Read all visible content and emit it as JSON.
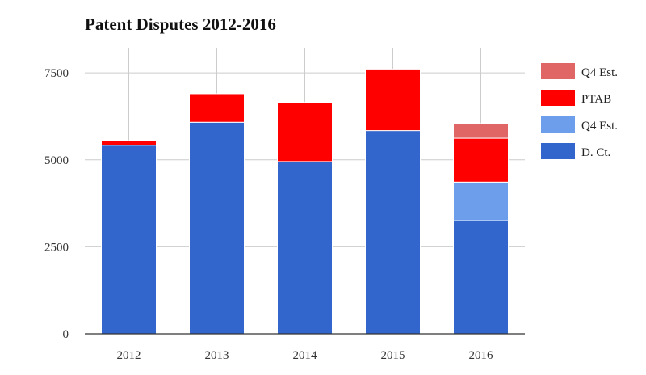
{
  "chart_data": {
    "type": "bar",
    "stacked": true,
    "title": "Patent Disputes 2012-2016",
    "xlabel": "",
    "ylabel": "",
    "categories": [
      "2012",
      "2013",
      "2014",
      "2015",
      "2016"
    ],
    "ylim": [
      0,
      8200
    ],
    "yticks": [
      0,
      2500,
      5000,
      7500
    ],
    "ytick_labels": [
      "0",
      "2500",
      "5000",
      "7500"
    ],
    "grid": true,
    "legend_position": "right",
    "series": [
      {
        "name": "D. Ct.",
        "color": "#3366cc",
        "values": [
          5420,
          6080,
          4950,
          5840,
          3250
        ]
      },
      {
        "name": "Q4 Est.",
        "color": "#6d9eeb",
        "values": [
          0,
          0,
          0,
          0,
          1110
        ]
      },
      {
        "name": "PTAB",
        "color": "#ff0000",
        "values": [
          130,
          820,
          1700,
          1770,
          1260
        ]
      },
      {
        "name": "Q4 Est.",
        "color": "#e06666",
        "values": [
          0,
          0,
          0,
          0,
          420
        ]
      }
    ],
    "legend_order": [
      3,
      2,
      1,
      0
    ]
  }
}
